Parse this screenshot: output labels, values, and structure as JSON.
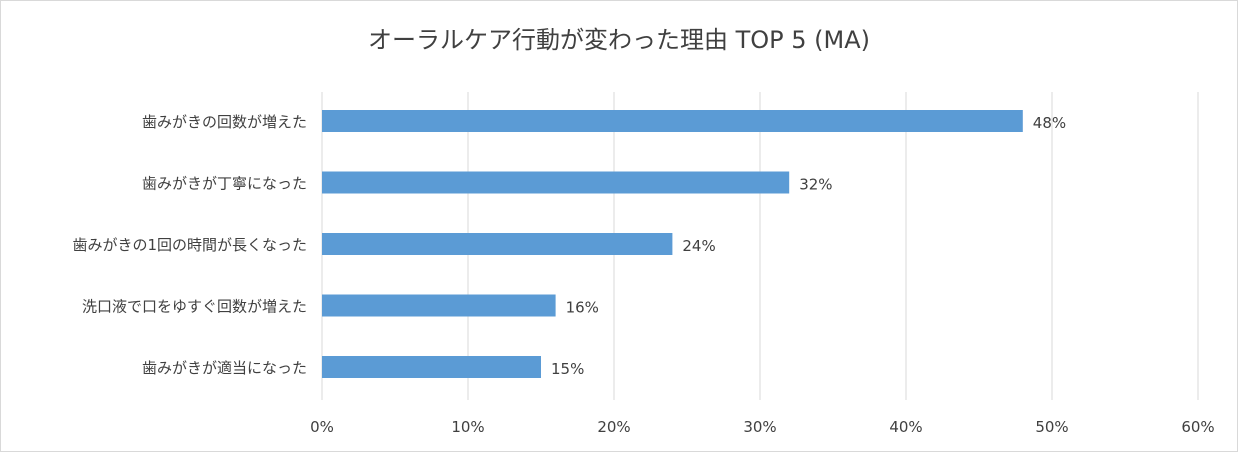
{
  "chart_data": {
    "type": "bar",
    "orientation": "horizontal",
    "title": "オーラルケア行動が変わった理由 TOP 5 (MA)",
    "categories": [
      "歯みがきの回数が増えた",
      "歯みがきが丁寧になった",
      "歯みがきの1回の時間が長くなった",
      "洗口液で口をゆすぐ回数が増えた",
      "歯みがきが適当になった"
    ],
    "values": [
      48,
      32,
      24,
      16,
      15
    ],
    "data_labels": [
      "48%",
      "32%",
      "24%",
      "16%",
      "15%"
    ],
    "xlim": [
      0,
      60
    ],
    "xticks": [
      0,
      10,
      20,
      30,
      40,
      50,
      60
    ],
    "xtick_labels": [
      "0%",
      "10%",
      "20%",
      "30%",
      "40%",
      "50%",
      "60%"
    ],
    "grid": "vertical",
    "legend": "none",
    "colors": {
      "bar": "#5b9bd5",
      "grid": "#d9d9d9",
      "text": "#404040"
    }
  }
}
